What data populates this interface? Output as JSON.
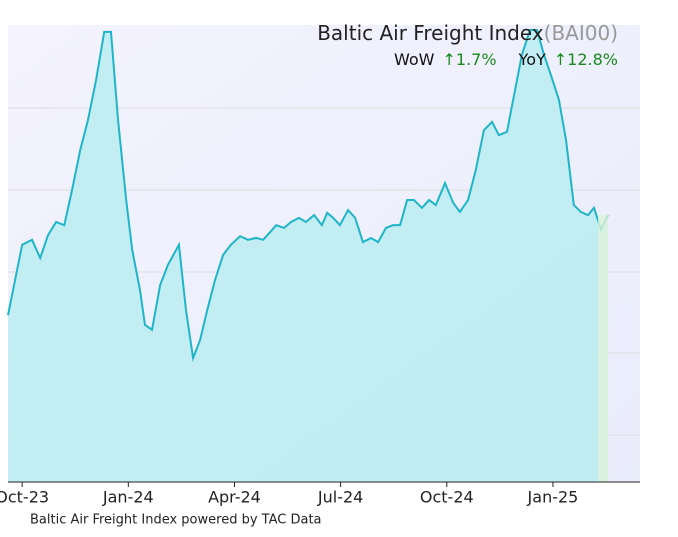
{
  "chart_data": {
    "type": "area",
    "title": "Baltic Air Freight Index",
    "ticker": "(BAI00)",
    "wow_label": "WoW",
    "wow": "↑1.7%",
    "yoy_label": "YoY",
    "yoy": "↑12.8%",
    "footer": "Baltic Air Freight Index powered by TAC Data",
    "color": "#1fb5c9",
    "fill": "#bdecf1",
    "x": [
      -0.4,
      0,
      0.28,
      0.51,
      0.73,
      0.96,
      1.19,
      1.41,
      1.64,
      1.86,
      2.09,
      2.32,
      2.51,
      2.71,
      2.94,
      3.11,
      3.33,
      3.47,
      3.67,
      3.9,
      4.12,
      4.43,
      4.63,
      4.83,
      5.03,
      5.23,
      5.45,
      5.68,
      5.9,
      6.16,
      6.38,
      6.61,
      6.81,
      7.01,
      7.18,
      7.4,
      7.6,
      7.82,
      8.02,
      8.25,
      8.47,
      8.62,
      8.79,
      8.98,
      9.21,
      9.41,
      9.63,
      9.86,
      10.06,
      10.28,
      10.48,
      10.68,
      10.88,
      11.07,
      11.3,
      11.5,
      11.69,
      11.95,
      12.18,
      12.37,
      12.6,
      12.82,
      13.05,
      13.28,
      13.47,
      13.7,
      13.93,
      14.12,
      14.35,
      14.55,
      14.75,
      14.94,
      15.17,
      15.37,
      15.59,
      15.79,
      15.99,
      16.16,
      16.36,
      16.55
    ],
    "values": [
      36.5,
      51.9,
      53.0,
      49.0,
      54.0,
      56.9,
      56.2,
      63.9,
      72.6,
      79.2,
      88.0,
      98.5,
      98.5,
      79.2,
      61.7,
      50.8,
      42.0,
      34.4,
      33.3,
      43.1,
      47.5,
      51.9,
      37.6,
      27.1,
      31.1,
      37.6,
      44.2,
      49.7,
      51.9,
      53.8,
      53.0,
      53.4,
      53.0,
      54.7,
      56.2,
      55.6,
      56.9,
      57.8,
      56.9,
      58.4,
      56.2,
      58.9,
      57.8,
      56.2,
      59.5,
      57.8,
      52.5,
      53.4,
      52.5,
      55.6,
      56.2,
      56.2,
      61.7,
      61.7,
      60.0,
      61.7,
      60.6,
      65.4,
      61.1,
      59.1,
      61.7,
      68.3,
      77.0,
      78.8,
      75.9,
      76.6,
      85.8,
      93.4,
      98.9,
      98.9,
      93.4,
      89.1,
      83.6,
      74.8,
      60.6,
      59.1,
      58.4,
      60.0,
      55.2,
      58.4
    ],
    "xlim": [
      -0.4,
      17.46
    ],
    "ylim": [
      0,
      100
    ],
    "xticks": [
      {
        "value": 0,
        "label": "Oct-23"
      },
      {
        "value": 3,
        "label": "Jan-24"
      },
      {
        "value": 6,
        "label": "Apr-24"
      },
      {
        "value": 9,
        "label": "Jul-24"
      },
      {
        "value": 12,
        "label": "Oct-24"
      },
      {
        "value": 15,
        "label": "Jan-25"
      }
    ]
  }
}
